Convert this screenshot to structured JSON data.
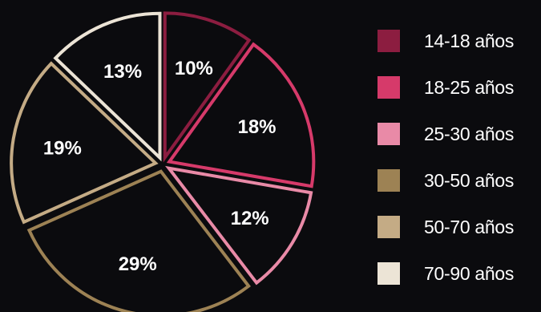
{
  "chart_data": {
    "type": "pie",
    "title": "",
    "legend_position": "right",
    "slices": [
      {
        "label": "14-18 años",
        "value": 10,
        "display": "10%",
        "color": "#8c1d40"
      },
      {
        "label": "18-25 años",
        "value": 18,
        "display": "18%",
        "color": "#d63a6a"
      },
      {
        "label": "25-30 años",
        "value": 12,
        "display": "12%",
        "color": "#e98aa7"
      },
      {
        "label": "30-50 años",
        "value": 29,
        "display": "29%",
        "color": "#9d8254"
      },
      {
        "label": "50-70 años",
        "value": 19,
        "display": "19%",
        "color": "#c4ab85"
      },
      {
        "label": "70-90 años",
        "value": 13,
        "display": "13%",
        "color": "#ece4d6"
      }
    ]
  }
}
